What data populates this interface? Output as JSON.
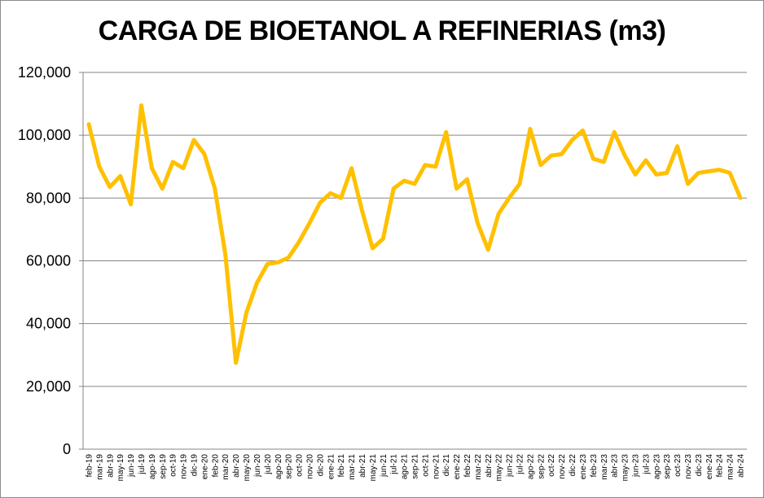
{
  "chart_data": {
    "type": "line",
    "title": "CARGA DE BIOETANOL A REFINERIAS (m3)",
    "xlabel": "",
    "ylabel": "",
    "ylim": [
      0,
      120000
    ],
    "yticks": [
      0,
      20000,
      40000,
      60000,
      80000,
      100000,
      120000
    ],
    "ytick_labels": [
      "0",
      "20,000",
      "40,000",
      "60,000",
      "80,000",
      "100,000",
      "120,000"
    ],
    "grid": "horizontal",
    "legend": "none",
    "line_color": "#FFC000",
    "categories": [
      "feb-19",
      "mar-19",
      "abr-19",
      "may-19",
      "jun-19",
      "jul-19",
      "ago-19",
      "sep-19",
      "oct-19",
      "nov-19",
      "dic-19",
      "ene-20",
      "feb-20",
      "mar-20",
      "abr-20",
      "may-20",
      "jun-20",
      "jul-20",
      "ago-20",
      "sep-20",
      "oct-20",
      "nov-20",
      "dic-20",
      "ene-21",
      "feb-21",
      "mar-21",
      "abr-21",
      "may-21",
      "jun-21",
      "jul-21",
      "ago-21",
      "sep-21",
      "oct-21",
      "nov-21",
      "dic-21",
      "ene-22",
      "feb-22",
      "mar-22",
      "abr-22",
      "may-22",
      "jun-22",
      "jul-22",
      "ago-22",
      "sep-22",
      "oct-22",
      "nov-22",
      "dic-22",
      "ene-23",
      "feb-23",
      "mar-23",
      "abr-23",
      "may-23",
      "jun-23",
      "jul-23",
      "ago-23",
      "sep-23",
      "oct-23",
      "nov-23",
      "dic-23",
      "ene-24",
      "feb-24",
      "mar-24",
      "abr-24"
    ],
    "series": [
      {
        "values": [
          103500,
          90000,
          83500,
          87000,
          78000,
          109500,
          89500,
          83000,
          91500,
          89500,
          98500,
          94000,
          83000,
          62000,
          27500,
          43500,
          53000,
          59000,
          59500,
          61000,
          66000,
          72000,
          78500,
          81500,
          80000,
          89500,
          76000,
          64000,
          67000,
          83000,
          85500,
          84500,
          90500,
          90000,
          101000,
          83000,
          86000,
          72000,
          63500,
          75000,
          80000,
          84500,
          102000,
          90500,
          93500,
          94000,
          98500,
          101500,
          92500,
          91500,
          101000,
          93500,
          87500,
          92000,
          87500,
          88000,
          96500,
          84500,
          88000,
          88500,
          89000,
          88000,
          80000
        ]
      }
    ]
  }
}
